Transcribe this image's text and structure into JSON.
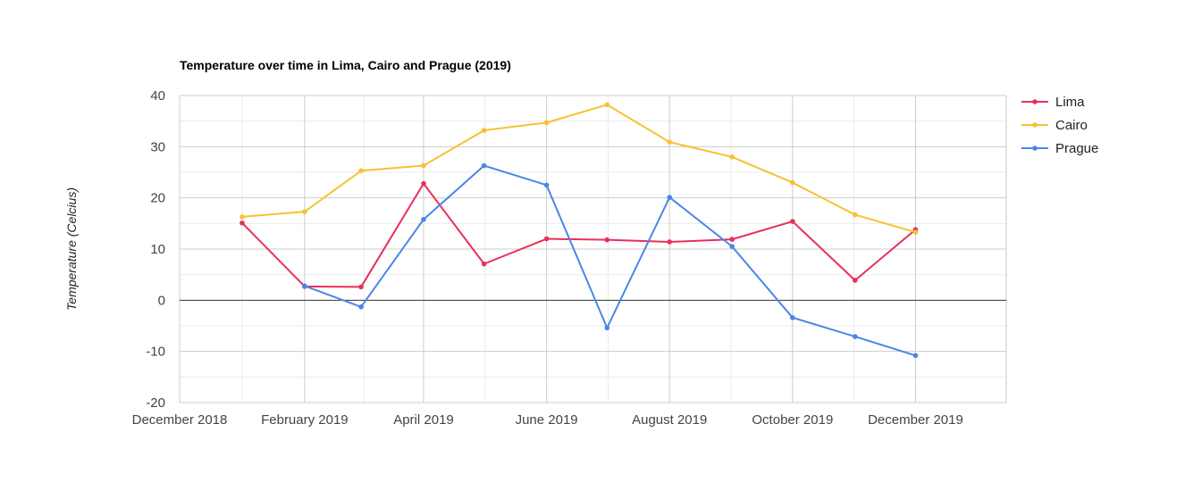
{
  "chart_data": {
    "type": "line",
    "title": "Temperature over time in Lima, Cairo and Prague (2019)",
    "xlabel": "",
    "ylabel": "Temperature (Celcius)",
    "ylim": [
      -20,
      40
    ],
    "y_ticks": [
      40,
      30,
      20,
      10,
      0,
      -10,
      -20
    ],
    "xlim": [
      "2018-12-01",
      "2020-01-15"
    ],
    "x_ticks": [
      {
        "date": "2018-12-01",
        "label": "December 2018"
      },
      {
        "date": "2019-02-01",
        "label": "February 2019"
      },
      {
        "date": "2019-04-01",
        "label": "April 2019"
      },
      {
        "date": "2019-06-01",
        "label": "June 2019"
      },
      {
        "date": "2019-08-01",
        "label": "August 2019"
      },
      {
        "date": "2019-10-01",
        "label": "October 2019"
      },
      {
        "date": "2019-12-01",
        "label": "December 2019"
      }
    ],
    "x": [
      "2019-01-01",
      "2019-02-01",
      "2019-03-01",
      "2019-04-01",
      "2019-05-01",
      "2019-06-01",
      "2019-07-01",
      "2019-08-01",
      "2019-09-01",
      "2019-10-01",
      "2019-11-01",
      "2019-12-01"
    ],
    "grid": true,
    "legend_position": "right",
    "series": [
      {
        "name": "Lima",
        "color": "#e8305a",
        "values": [
          15.1,
          2.7,
          2.6,
          22.8,
          7.1,
          12.0,
          11.8,
          11.4,
          11.9,
          15.4,
          3.9,
          13.8
        ]
      },
      {
        "name": "Cairo",
        "color": "#f5c232",
        "values": [
          16.3,
          17.3,
          25.3,
          26.3,
          33.2,
          34.7,
          38.2,
          30.9,
          28.0,
          23.0,
          16.7,
          13.3
        ]
      },
      {
        "name": "Prague",
        "color": "#4a86e8",
        "values": [
          null,
          2.8,
          -1.3,
          15.8,
          26.3,
          22.5,
          -5.4,
          20.1,
          10.5,
          -3.4,
          -7.1,
          -10.8
        ]
      }
    ]
  }
}
